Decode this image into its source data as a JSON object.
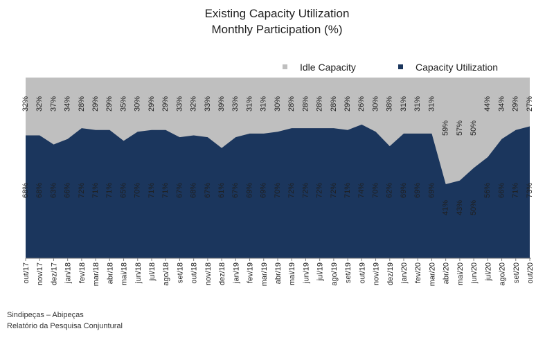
{
  "title_line1": "Existing Capacity Utilization",
  "title_line2": "Monthly Participation (%)",
  "source_line1": "Sindipeças – Abipeças",
  "source_line2": "Relatório da Pesquisa Conjuntural",
  "chart_data": {
    "type": "area",
    "stacked": true,
    "x": [
      "out/17",
      "nov/17",
      "dez/17",
      "jan/18",
      "fev/18",
      "mar/18",
      "abr/18",
      "mai/18",
      "jun/18",
      "jul/18",
      "ago/18",
      "set/18",
      "out/18",
      "nov/18",
      "dez/18",
      "jan/19",
      "fev/19",
      "mar/19",
      "abr/19",
      "mai/19",
      "jun/19",
      "jul/19",
      "ago/19",
      "set/19",
      "out/19",
      "nov/19",
      "dez/19",
      "jan/20",
      "fev/20",
      "mar/20",
      "abr/20",
      "mai/20",
      "jun/20",
      "jul/20",
      "ago/20",
      "set/20",
      "out/20"
    ],
    "series": [
      {
        "name": "Capacity Utilization",
        "color": "#1b365d",
        "values": [
          68,
          68,
          63,
          66,
          72,
          71,
          71,
          65,
          70,
          71,
          71,
          67,
          68,
          67,
          61,
          67,
          69,
          69,
          70,
          72,
          72,
          72,
          72,
          71,
          74,
          70,
          62,
          69,
          69,
          69,
          41,
          43,
          50,
          56,
          66,
          71,
          73
        ],
        "labels": [
          "68%",
          "68%",
          "63%",
          "66%",
          "72%",
          "71%",
          "71%",
          "65%",
          "70%",
          "71%",
          "71%",
          "67%",
          "68%",
          "67%",
          "61%",
          "67%",
          "69%",
          "69%",
          "70%",
          "72%",
          "72%",
          "72%",
          "72%",
          "71%",
          "74%",
          "70%",
          "62%",
          "69%",
          "69%",
          "69%",
          "41%",
          "43%",
          "50%",
          "56%",
          "66%",
          "71%",
          "73%"
        ]
      },
      {
        "name": "Idle Capacity",
        "color": "#bfbfbf",
        "values": [
          32,
          32,
          37,
          34,
          28,
          29,
          29,
          35,
          30,
          29,
          29,
          33,
          32,
          33,
          39,
          33,
          31,
          31,
          30,
          28,
          28,
          28,
          28,
          29,
          26,
          30,
          38,
          31,
          31,
          31,
          59,
          57,
          50,
          44,
          34,
          29,
          27
        ],
        "labels": [
          "32%",
          "32%",
          "37%",
          "34%",
          "28%",
          "29%",
          "29%",
          "35%",
          "30%",
          "29%",
          "29%",
          "33%",
          "32%",
          "33%",
          "39%",
          "33%",
          "31%",
          "31%",
          "30%",
          "28%",
          "28%",
          "28%",
          "28%",
          "29%",
          "26%",
          "30%",
          "38%",
          "31%",
          "31%",
          "31%",
          "59%",
          "57%",
          "50%",
          "44%",
          "34%",
          "29%",
          "27%"
        ]
      }
    ],
    "ylim": [
      0,
      100
    ],
    "legend": {
      "position": "top-right",
      "entries": [
        "Idle Capacity",
        "Capacity Utilization"
      ]
    },
    "grid": false
  }
}
